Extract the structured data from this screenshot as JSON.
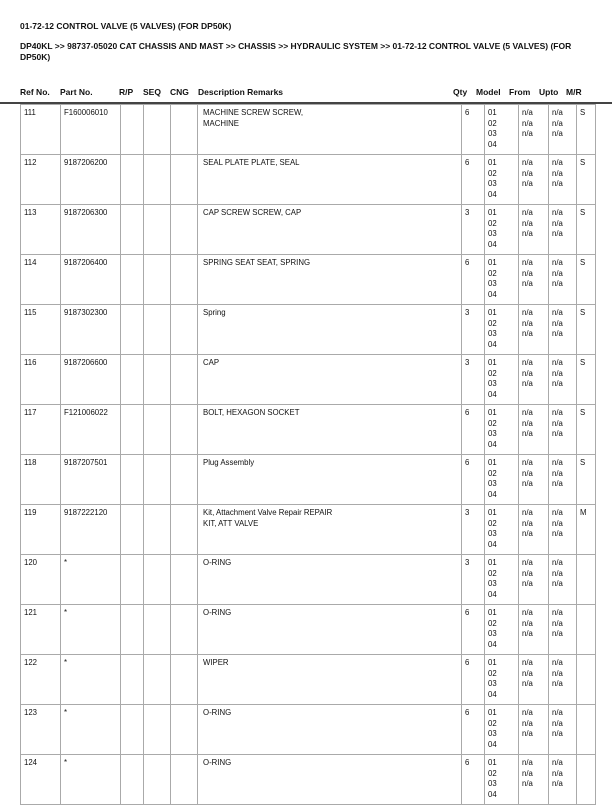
{
  "title": "01-72-12 CONTROL VALVE (5 VALVES) (FOR DP50K)",
  "breadcrumb": "DP40KL >> 98737-05020 CAT CHASSIS AND MAST >> CHASSIS >> HYDRAULIC SYSTEM >> 01-72-12 CONTROL VALVE (5 VALVES) (FOR DP50K)",
  "columns": {
    "ref": "Ref No.",
    "part": "Part No.",
    "rp": "R/P",
    "seq": "SEQ",
    "cng": "CNG",
    "desc": "Description Remarks",
    "qty": "Qty",
    "model": "Model",
    "from": "From",
    "upto": "Upto",
    "mr": "M/R"
  },
  "rows": [
    {
      "ref": "111",
      "part": "F160006010",
      "desc": "MACHINE SCREW SCREW,\nMACHINE",
      "qty": "6",
      "model": "01\n02\n03\n04",
      "from": "n/a\nn/a\nn/a",
      "upto": "n/a\nn/a\nn/a",
      "mr": "S"
    },
    {
      "ref": "112",
      "part": "9187206200",
      "desc": "SEAL PLATE PLATE, SEAL",
      "qty": "6",
      "model": "01\n02\n03\n04",
      "from": "n/a\nn/a\nn/a",
      "upto": "n/a\nn/a\nn/a",
      "mr": "S"
    },
    {
      "ref": "113",
      "part": "9187206300",
      "desc": "CAP SCREW SCREW, CAP",
      "qty": "3",
      "model": "01\n02\n03\n04",
      "from": "n/a\nn/a\nn/a",
      "upto": "n/a\nn/a\nn/a",
      "mr": "S"
    },
    {
      "ref": "114",
      "part": "9187206400",
      "desc": "SPRING SEAT SEAT, SPRING",
      "qty": "6",
      "model": "01\n02\n03\n04",
      "from": "n/a\nn/a\nn/a",
      "upto": "n/a\nn/a\nn/a",
      "mr": "S"
    },
    {
      "ref": "115",
      "part": "9187302300",
      "desc": "Spring",
      "qty": "3",
      "model": "01\n02\n03\n04",
      "from": "n/a\nn/a\nn/a",
      "upto": "n/a\nn/a\nn/a",
      "mr": "S"
    },
    {
      "ref": "116",
      "part": "9187206600",
      "desc": "CAP",
      "qty": "3",
      "model": "01\n02\n03\n04",
      "from": "n/a\nn/a\nn/a",
      "upto": "n/a\nn/a\nn/a",
      "mr": "S"
    },
    {
      "ref": "117",
      "part": "F121006022",
      "desc": "BOLT, HEXAGON SOCKET",
      "qty": "6",
      "model": "01\n02\n03\n04",
      "from": "n/a\nn/a\nn/a",
      "upto": "n/a\nn/a\nn/a",
      "mr": "S"
    },
    {
      "ref": "118",
      "part": "9187207501",
      "desc": "Plug Assembly",
      "qty": "6",
      "model": "01\n02\n03\n04",
      "from": "n/a\nn/a\nn/a",
      "upto": "n/a\nn/a\nn/a",
      "mr": "S"
    },
    {
      "ref": "119",
      "part": "9187222120",
      "desc": "Kit, Attachment Valve Repair REPAIR\nKIT, ATT VALVE",
      "qty": "3",
      "model": "01\n02\n03\n04",
      "from": "n/a\nn/a\nn/a",
      "upto": "n/a\nn/a\nn/a",
      "mr": "M"
    },
    {
      "ref": "120",
      "part": "*",
      "desc": " O-RING",
      "qty": "3",
      "model": "01\n02\n03\n04",
      "from": "n/a\nn/a\nn/a",
      "upto": "n/a\nn/a\nn/a",
      "mr": ""
    },
    {
      "ref": "121",
      "part": "*",
      "desc": " O-RING",
      "qty": "6",
      "model": "01\n02\n03\n04",
      "from": "n/a\nn/a\nn/a",
      "upto": "n/a\nn/a\nn/a",
      "mr": ""
    },
    {
      "ref": "122",
      "part": "*",
      "desc": " WIPER",
      "qty": "6",
      "model": "01\n02\n03\n04",
      "from": "n/a\nn/a\nn/a",
      "upto": "n/a\nn/a\nn/a",
      "mr": ""
    },
    {
      "ref": "123",
      "part": "*",
      "desc": " O-RING",
      "qty": "6",
      "model": "01\n02\n03\n04",
      "from": "n/a\nn/a\nn/a",
      "upto": "n/a\nn/a\nn/a",
      "mr": ""
    },
    {
      "ref": "124",
      "part": "*",
      "desc": " O-RING",
      "qty": "6",
      "model": "01\n02\n03\n04",
      "from": "n/a\nn/a\nn/a",
      "upto": "n/a\nn/a\nn/a",
      "mr": ""
    }
  ]
}
